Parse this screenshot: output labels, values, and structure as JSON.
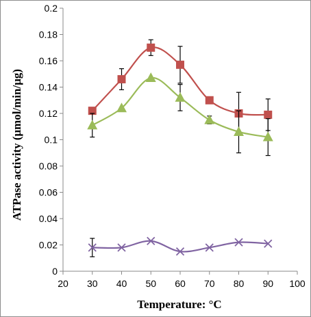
{
  "chart_data": {
    "type": "line",
    "xlabel": "Temperature:  °C",
    "ylabel": "ATPase activity (μmol/min/μg)",
    "xlim": [
      20,
      100
    ],
    "ylim": [
      0,
      0.2
    ],
    "x_ticks": [
      "20",
      "30",
      "40",
      "50",
      "60",
      "70",
      "80",
      "90",
      "100"
    ],
    "y_ticks": [
      "0",
      "0.02",
      "0.04",
      "0.06",
      "0.08",
      "0.1",
      "0.12",
      "0.14",
      "0.16",
      "0.18",
      "0.2"
    ],
    "grid": false,
    "x": [
      30,
      40,
      50,
      60,
      70,
      80,
      90
    ],
    "series": [
      {
        "marker": "square",
        "color": "#c0504d",
        "values": [
          0.122,
          0.146,
          0.17,
          0.157,
          0.13,
          0.12,
          0.119
        ],
        "error": [
          0.0,
          0.008,
          0.006,
          0.014,
          0.0,
          0.016,
          0.012
        ]
      },
      {
        "marker": "triangle",
        "color": "#9bbb59",
        "values": [
          0.111,
          0.124,
          0.147,
          0.132,
          0.115,
          0.106,
          0.102
        ],
        "error": [
          0.009,
          0.0,
          0.0,
          0.01,
          0.003,
          0.016,
          0.014
        ]
      },
      {
        "marker": "x",
        "color": "#8064a2",
        "values": [
          0.018,
          0.018,
          0.023,
          0.015,
          0.018,
          0.022,
          0.021
        ],
        "error": [
          0.007,
          0.0,
          0.0,
          0.0,
          0.0,
          0.0,
          0.0
        ]
      }
    ]
  }
}
